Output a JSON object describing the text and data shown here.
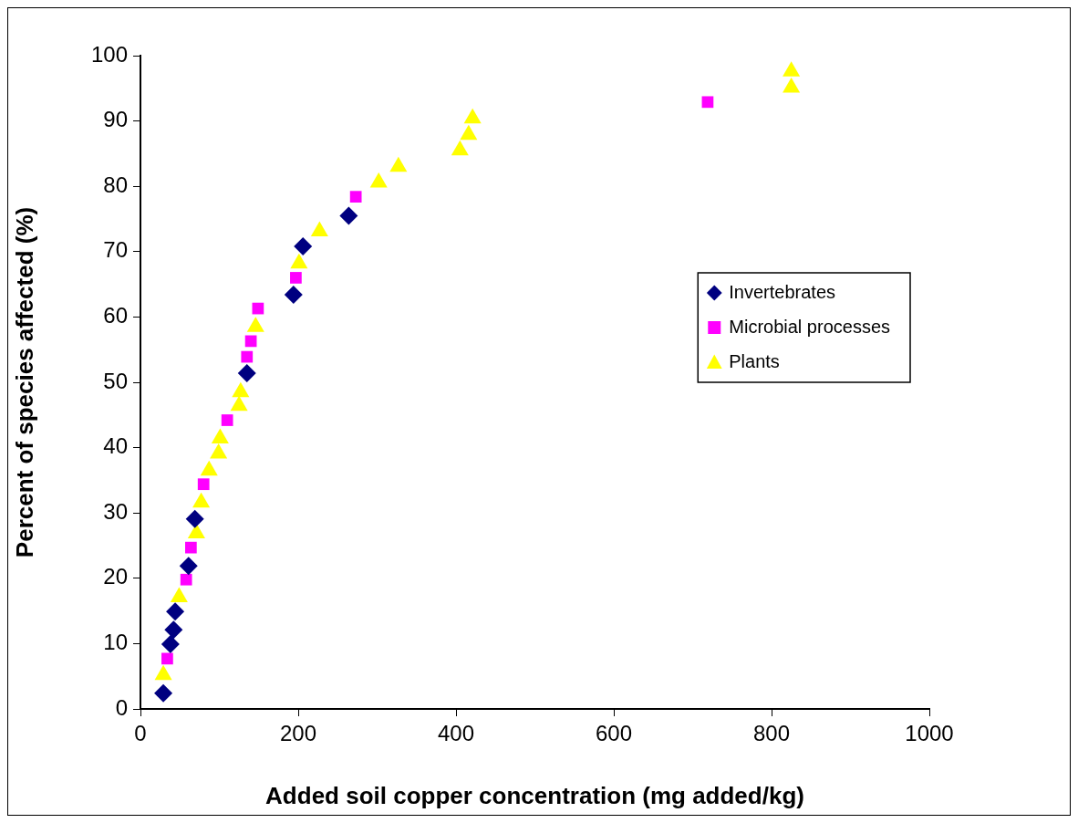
{
  "chart_data": {
    "type": "scatter",
    "xlabel": "Added soil copper concentration (mg added/kg)",
    "ylabel": "Percent of species affected (%)",
    "xlim": [
      0,
      1000
    ],
    "xticks": [
      0,
      200,
      400,
      600,
      800,
      1000
    ],
    "ylim": [
      0,
      100
    ],
    "yticks": [
      0,
      10,
      20,
      30,
      40,
      50,
      60,
      70,
      80,
      90,
      100
    ],
    "grid": false,
    "legend": "right",
    "series": [
      {
        "name": "Invertebrates",
        "color": "#000080",
        "marker": "diamond",
        "x": [
          29,
          38,
          42,
          44,
          61,
          69,
          135,
          194,
          206,
          264
        ],
        "values": [
          2.4,
          9.9,
          12.1,
          14.9,
          21.9,
          29.1,
          51.4,
          63.4,
          70.8,
          75.5
        ]
      },
      {
        "name": "Microbial processes",
        "color": "#ff00ff",
        "marker": "square",
        "x": [
          34,
          58,
          64,
          80,
          110,
          135,
          140,
          149,
          197,
          273,
          719
        ],
        "values": [
          7.7,
          19.8,
          24.7,
          34.4,
          44.2,
          53.9,
          56.3,
          61.3,
          66.0,
          78.4,
          92.9
        ]
      },
      {
        "name": "Plants",
        "color": "#ffff00",
        "marker": "triangle",
        "x": [
          29,
          49,
          71,
          77,
          87,
          99,
          101,
          125,
          127,
          146,
          201,
          227,
          302,
          327,
          405,
          416,
          421,
          825,
          825
        ],
        "values": [
          5.2,
          17.1,
          26.9,
          31.6,
          36.5,
          39.1,
          41.4,
          46.4,
          48.5,
          58.5,
          68.2,
          73.1,
          80.6,
          83.0,
          85.5,
          87.9,
          90.4,
          95.1,
          97.6
        ]
      }
    ]
  }
}
